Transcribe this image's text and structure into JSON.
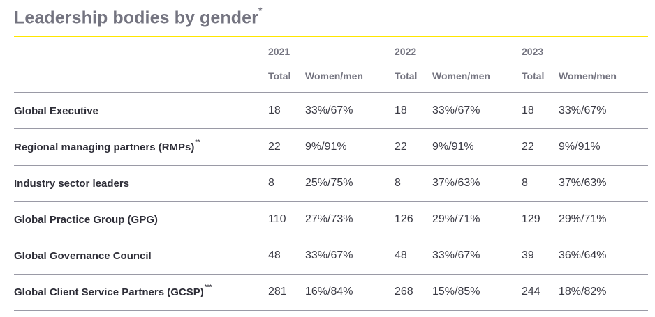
{
  "title": "Leadership bodies by gender",
  "title_marker": "*",
  "years": [
    "2021",
    "2022",
    "2023"
  ],
  "subheaders": {
    "total": "Total",
    "ratio": "Women/men"
  },
  "rows": [
    {
      "label": "Global Executive",
      "marker": "",
      "values": [
        [
          "18",
          "33%/67%"
        ],
        [
          "18",
          "33%/67%"
        ],
        [
          "18",
          "33%/67%"
        ]
      ]
    },
    {
      "label": "Regional managing partners (RMPs)",
      "marker": "**",
      "values": [
        [
          "22",
          "9%/91%"
        ],
        [
          "22",
          "9%/91%"
        ],
        [
          "22",
          "9%/91%"
        ]
      ]
    },
    {
      "label": "Industry sector leaders",
      "marker": "",
      "values": [
        [
          "8",
          "25%/75%"
        ],
        [
          "8",
          "37%/63%"
        ],
        [
          "8",
          "37%/63%"
        ]
      ]
    },
    {
      "label": "Global Practice Group (GPG)",
      "marker": "",
      "values": [
        [
          "110",
          "27%/73%"
        ],
        [
          "126",
          "29%/71%"
        ],
        [
          "129",
          "29%/71%"
        ]
      ]
    },
    {
      "label": "Global Governance Council",
      "marker": "",
      "values": [
        [
          "48",
          "33%/67%"
        ],
        [
          "48",
          "33%/67%"
        ],
        [
          "39",
          "36%/64%"
        ]
      ]
    },
    {
      "label": "Global Client Service Partners (GCSP)",
      "marker": "***",
      "values": [
        [
          "281",
          "16%/84%"
        ],
        [
          "268",
          "15%/85%"
        ],
        [
          "244",
          "18%/82%"
        ]
      ]
    }
  ],
  "colors": {
    "accent": "#ffe600",
    "heading": "#747480",
    "text": "#2e2e38"
  }
}
